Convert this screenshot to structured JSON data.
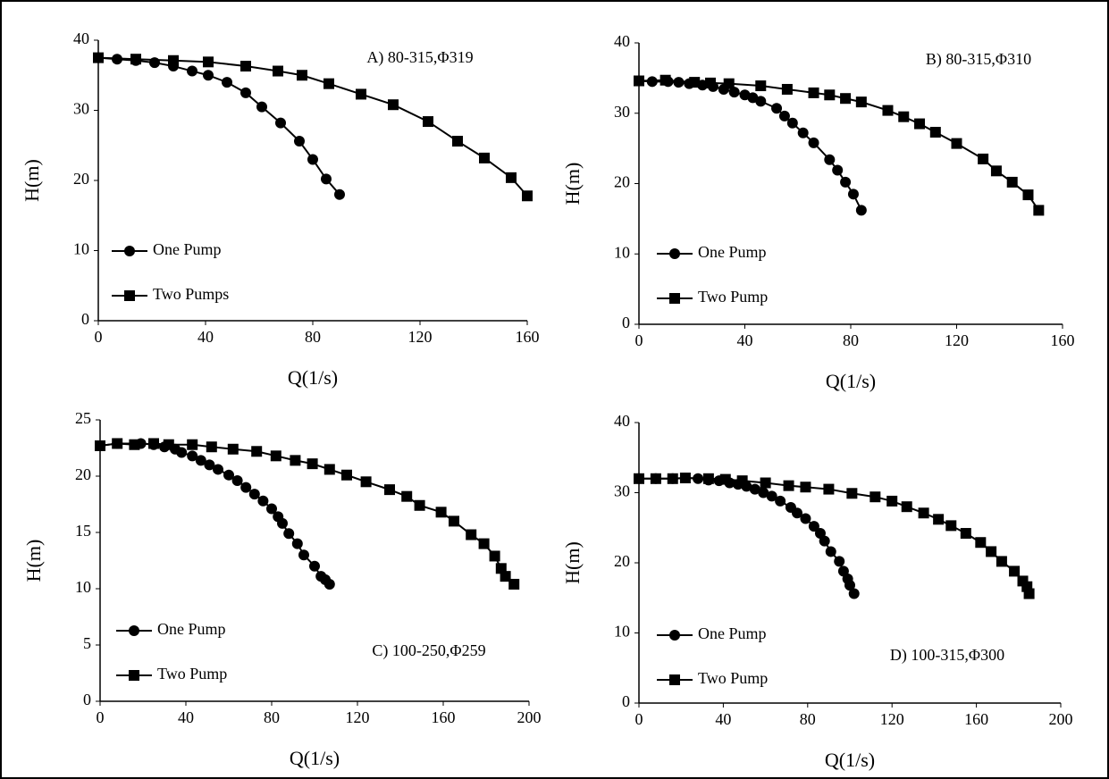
{
  "chart_data": [
    {
      "type": "line",
      "annotation": "A) 80-315,Φ319",
      "x_label": "Q(1/s)",
      "y_label": "H(m)",
      "xlim": [
        0,
        160
      ],
      "ylim": [
        0,
        40
      ],
      "xticks": [
        0,
        40,
        80,
        120,
        160
      ],
      "yticks": [
        0,
        10,
        20,
        30,
        40
      ],
      "series": [
        {
          "name": "One Pump",
          "marker": "circle",
          "color": "#000000",
          "x": [
            0,
            7,
            14,
            21,
            28,
            35,
            41,
            48,
            55,
            61,
            68,
            75,
            80,
            85,
            90
          ],
          "values": [
            37.5,
            37.3,
            37.1,
            36.8,
            36.3,
            35.6,
            35,
            34,
            32.5,
            30.5,
            28.2,
            25.6,
            23,
            20.2,
            18
          ]
        },
        {
          "name": "Two Pumps",
          "marker": "square",
          "color": "#000000",
          "x": [
            0,
            14,
            28,
            41,
            55,
            67,
            76,
            86,
            98,
            110,
            123,
            134,
            144,
            154,
            160
          ],
          "values": [
            37.5,
            37.3,
            37.1,
            36.9,
            36.3,
            35.6,
            35,
            33.8,
            32.3,
            30.8,
            28.4,
            25.6,
            23.2,
            20.4,
            17.8
          ]
        }
      ]
    },
    {
      "type": "line",
      "annotation": "B) 80-315,Φ310",
      "x_label": "Q(1/s)",
      "y_label": "H(m)",
      "xlim": [
        0,
        160
      ],
      "ylim": [
        0,
        40
      ],
      "xticks": [
        0,
        40,
        80,
        120,
        160
      ],
      "yticks": [
        0,
        10,
        20,
        30,
        40
      ],
      "series": [
        {
          "name": "One Pump",
          "marker": "circle",
          "color": "#000000",
          "x": [
            0,
            5,
            11,
            15,
            19,
            24,
            28,
            32,
            36,
            40,
            43,
            46,
            52,
            55,
            58,
            62,
            66,
            72,
            75,
            78,
            81,
            84
          ],
          "values": [
            34.6,
            34.5,
            34.5,
            34.4,
            34.2,
            34,
            33.8,
            33.4,
            33,
            32.6,
            32.2,
            31.7,
            30.7,
            29.6,
            28.6,
            27.2,
            25.8,
            23.4,
            21.9,
            20.2,
            18.5,
            16.2
          ]
        },
        {
          "name": "Two Pump",
          "marker": "square",
          "color": "#000000",
          "x": [
            0,
            10,
            21,
            27,
            34,
            46,
            56,
            66,
            72,
            78,
            84,
            94,
            100,
            106,
            112,
            120,
            130,
            135,
            141,
            147,
            151
          ],
          "values": [
            34.6,
            34.7,
            34.4,
            34.3,
            34.2,
            33.9,
            33.4,
            32.9,
            32.6,
            32.1,
            31.6,
            30.4,
            29.5,
            28.5,
            27.3,
            25.7,
            23.5,
            21.8,
            20.2,
            18.4,
            16.2
          ]
        }
      ]
    },
    {
      "type": "line",
      "annotation": "C) 100-250,Φ259",
      "x_label": "Q(1/s)",
      "y_label": "H(m)",
      "xlim": [
        0,
        200
      ],
      "ylim": [
        0,
        25
      ],
      "xticks": [
        0,
        40,
        80,
        120,
        160,
        200
      ],
      "yticks": [
        0,
        5,
        10,
        15,
        20,
        25
      ],
      "series": [
        {
          "name": "One Pump",
          "marker": "circle",
          "color": "#000000",
          "x": [
            0,
            8,
            19,
            25,
            30,
            35,
            38,
            43,
            47,
            51,
            55,
            60,
            64,
            68,
            72,
            76,
            80,
            83,
            85,
            88,
            92,
            95,
            100,
            103,
            105,
            107
          ],
          "values": [
            22.7,
            22.9,
            22.9,
            22.8,
            22.6,
            22.4,
            22.1,
            21.8,
            21.4,
            21,
            20.6,
            20.1,
            19.6,
            19,
            18.4,
            17.8,
            17.1,
            16.4,
            15.8,
            14.9,
            14,
            13,
            12,
            11.1,
            10.8,
            10.4
          ]
        },
        {
          "name": "Two Pump",
          "marker": "square",
          "color": "#000000",
          "x": [
            0,
            8,
            16,
            25,
            32,
            43,
            52,
            62,
            73,
            82,
            91,
            99,
            107,
            115,
            124,
            135,
            143,
            149,
            159,
            165,
            173,
            179,
            184,
            187,
            189,
            193
          ],
          "values": [
            22.7,
            22.9,
            22.8,
            22.9,
            22.8,
            22.8,
            22.6,
            22.4,
            22.2,
            21.8,
            21.4,
            21.1,
            20.6,
            20.1,
            19.5,
            18.8,
            18.2,
            17.4,
            16.8,
            16,
            14.8,
            14,
            12.9,
            11.8,
            11.1,
            10.4
          ]
        }
      ]
    },
    {
      "type": "line",
      "annotation": "D) 100-315,Φ300",
      "x_label": "Q(1/s)",
      "y_label": "H(m)",
      "xlim": [
        0,
        200
      ],
      "ylim": [
        0,
        40
      ],
      "xticks": [
        0,
        40,
        80,
        120,
        160,
        200
      ],
      "yticks": [
        0,
        10,
        20,
        30,
        40
      ],
      "series": [
        {
          "name": "One Pump",
          "marker": "circle",
          "color": "#000000",
          "x": [
            0,
            8,
            16,
            22,
            28,
            33,
            38,
            43,
            47,
            51,
            55,
            59,
            63,
            67,
            72,
            75,
            79,
            83,
            86,
            88,
            91,
            95,
            97,
            99,
            100,
            102
          ],
          "values": [
            32,
            32,
            32,
            32.1,
            32,
            31.8,
            31.7,
            31.4,
            31.2,
            30.9,
            30.5,
            30,
            29.5,
            28.8,
            27.9,
            27.1,
            26.3,
            25.2,
            24.2,
            23.1,
            21.6,
            20.2,
            18.8,
            17.7,
            16.8,
            15.6
          ]
        },
        {
          "name": "Two Pump",
          "marker": "square",
          "color": "#000000",
          "x": [
            0,
            8,
            16,
            22,
            33,
            41,
            49,
            60,
            71,
            79,
            90,
            101,
            112,
            120,
            127,
            135,
            142,
            148,
            155,
            162,
            167,
            172,
            178,
            182,
            184,
            185
          ],
          "values": [
            32,
            32,
            32,
            32.1,
            32,
            31.9,
            31.7,
            31.4,
            31,
            30.8,
            30.5,
            29.9,
            29.4,
            28.8,
            28,
            27.1,
            26.2,
            25.3,
            24.2,
            22.9,
            21.6,
            20.2,
            18.8,
            17.4,
            16.6,
            15.6
          ]
        }
      ]
    }
  ]
}
